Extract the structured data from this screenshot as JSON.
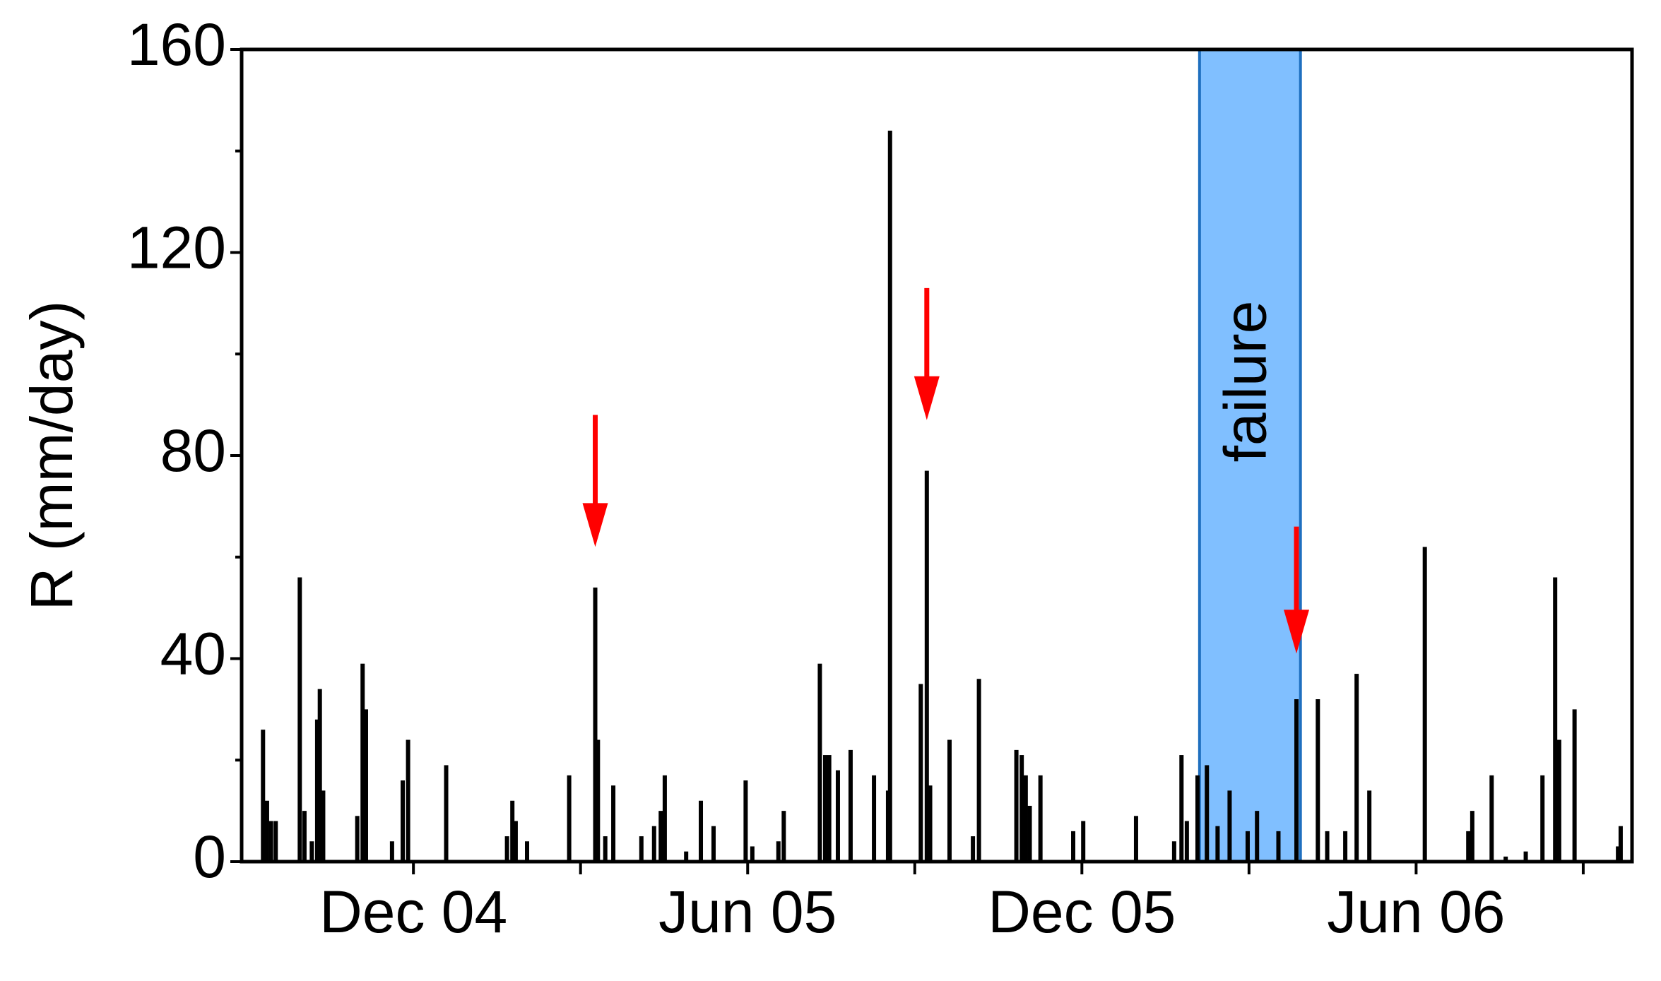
{
  "chart_data": {
    "type": "bar",
    "ylabel": "R (mm/day)",
    "color": "#000000",
    "xlim": [
      2004.66,
      2006.74
    ],
    "xticks": [
      {
        "value": 2004.917,
        "label": "Dec 04"
      },
      {
        "value": 2005.417,
        "label": "Jun 05"
      },
      {
        "value": 2005.917,
        "label": "Dec 05"
      },
      {
        "value": 2006.417,
        "label": "Jun 06"
      }
    ],
    "xminor_ticks": [
      2005.167,
      2005.667,
      2006.167,
      2006.667
    ],
    "ylim": [
      0,
      160
    ],
    "yticks": [
      0,
      40,
      80,
      120,
      160
    ],
    "yminor_ticks": [
      20,
      60,
      100,
      140
    ],
    "x": [
      2004.692,
      2004.698,
      2004.704,
      2004.711,
      2004.747,
      2004.754,
      2004.765,
      2004.773,
      2004.777,
      2004.782,
      2004.833,
      2004.841,
      2004.846,
      2004.885,
      2004.901,
      2004.909,
      2004.966,
      2005.057,
      2005.065,
      2005.07,
      2005.087,
      2005.15,
      2005.189,
      2005.193,
      2005.204,
      2005.216,
      2005.258,
      2005.277,
      2005.287,
      2005.293,
      2005.325,
      2005.347,
      2005.366,
      2005.414,
      2005.424,
      2005.463,
      2005.471,
      2005.525,
      2005.533,
      2005.539,
      2005.552,
      2005.571,
      2005.606,
      2005.627,
      2005.63,
      2005.676,
      2005.685,
      2005.69,
      2005.719,
      2005.754,
      2005.763,
      2005.819,
      2005.827,
      2005.833,
      2005.839,
      2005.855,
      2005.904,
      2005.919,
      2005.998,
      2006.055,
      2006.066,
      2006.074,
      2006.09,
      2006.104,
      2006.12,
      2006.138,
      2006.165,
      2006.179,
      2006.211,
      2006.238,
      2006.27,
      2006.284,
      2006.311,
      2006.328,
      2006.347,
      2006.43,
      2006.495,
      2006.501,
      2006.53,
      2006.551,
      2006.581,
      2006.606,
      2006.625,
      2006.631,
      2006.654,
      2006.719,
      2006.723
    ],
    "values": [
      26,
      12,
      8,
      8,
      56,
      10,
      4,
      28,
      34,
      14,
      9,
      39,
      30,
      4,
      16,
      24,
      19,
      5,
      12,
      8,
      4,
      17,
      54,
      24,
      5,
      15,
      5,
      7,
      10,
      17,
      2,
      12,
      7,
      16,
      3,
      4,
      10,
      39,
      21,
      21,
      18,
      22,
      17,
      14,
      144,
      35,
      77,
      15,
      24,
      5,
      36,
      22,
      21,
      17,
      11,
      17,
      6,
      8,
      9,
      4,
      21,
      8,
      17,
      19,
      7,
      14,
      6,
      10,
      6,
      32,
      32,
      6,
      6,
      37,
      14,
      62,
      6,
      10,
      17,
      1,
      2,
      17,
      56,
      24,
      30,
      3,
      7
    ],
    "shaded_region": {
      "x": [
        2006.093,
        2006.244
      ],
      "label": "failure",
      "color": "#80bfff",
      "edge_color": "#1f6fbf"
    },
    "arrows": {
      "color": "#ff0000",
      "x": [
        2005.189,
        2005.685,
        2006.238
      ],
      "from": [
        88,
        113,
        66
      ],
      "to": [
        62,
        87,
        41
      ]
    }
  }
}
